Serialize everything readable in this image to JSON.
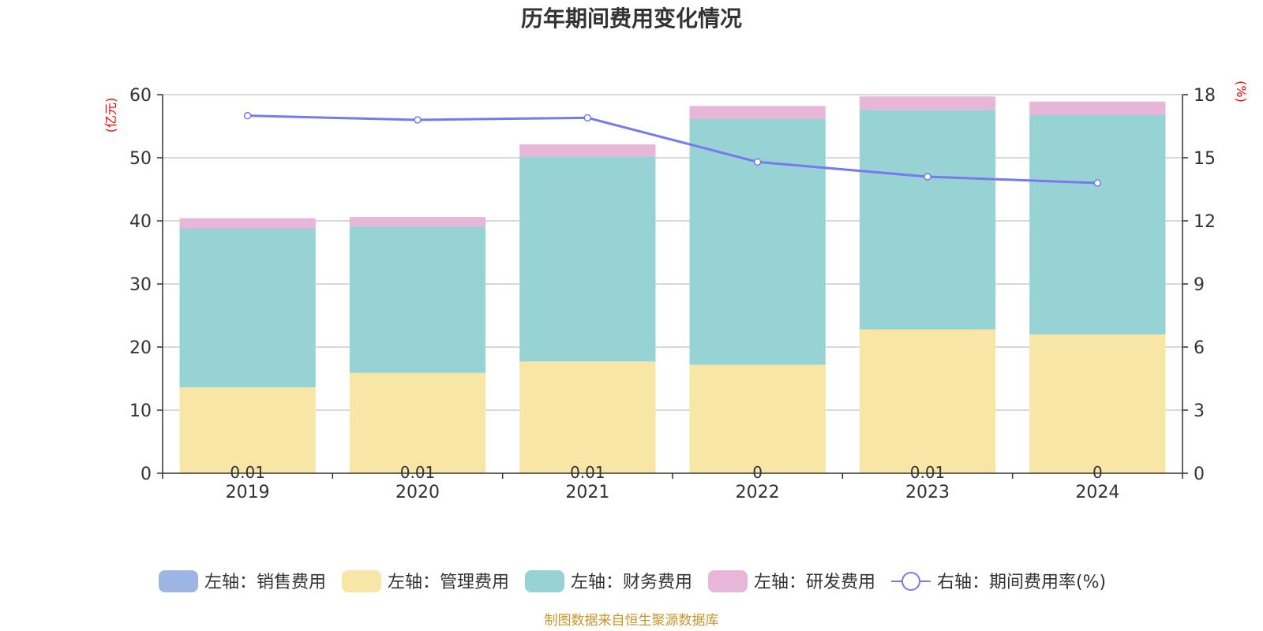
{
  "chart_data": {
    "type": "bar",
    "title": "历年期间费用变化情况",
    "categories": [
      "2019",
      "2020",
      "2021",
      "2022",
      "2023",
      "2024"
    ],
    "left_axis": {
      "unit": "(亿元)",
      "ylim": [
        0,
        60
      ],
      "ticks": [
        "0",
        "10",
        "20",
        "30",
        "40",
        "50",
        "60"
      ]
    },
    "right_axis": {
      "unit": "(%)",
      "ylim": [
        0,
        18
      ],
      "ticks": [
        "0",
        "3",
        "6",
        "9",
        "12",
        "15",
        "18"
      ]
    },
    "series": [
      {
        "name": "左轴：销售费用",
        "axis": "left",
        "kind": "bar-stack",
        "color": "#9db5e2",
        "values": [
          0.01,
          0.01,
          0.01,
          0,
          0.01,
          0
        ],
        "labels": [
          "0.01",
          "0.01",
          "0.01",
          "0",
          "0.01",
          "0"
        ]
      },
      {
        "name": "左轴：管理费用",
        "axis": "left",
        "kind": "bar-stack",
        "color": "#f7e6a6",
        "values": [
          13.6,
          15.9,
          17.7,
          17.2,
          22.8,
          22.0
        ]
      },
      {
        "name": "左轴：财务费用",
        "axis": "left",
        "kind": "bar-stack",
        "color": "#97d3d4",
        "values": [
          25.2,
          23.2,
          32.5,
          39.0,
          34.8,
          34.8
        ]
      },
      {
        "name": "左轴：研发费用",
        "axis": "left",
        "kind": "bar-stack",
        "color": "#e7b6d8",
        "values": [
          1.6,
          1.5,
          1.9,
          2.0,
          2.1,
          2.1
        ]
      },
      {
        "name": "右轴：期间费用率(%)",
        "axis": "right",
        "kind": "line",
        "color": "#7879ee",
        "values": [
          17.0,
          16.8,
          16.9,
          14.8,
          14.1,
          13.8
        ]
      }
    ],
    "grid": true,
    "legend_position": "bottom"
  },
  "footer": {
    "source": "制图数据来自恒生聚源数据库"
  }
}
